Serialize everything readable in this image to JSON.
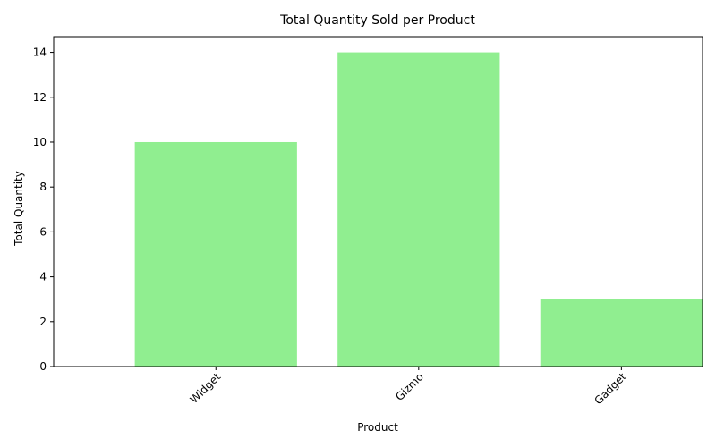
{
  "chart_data": {
    "type": "bar",
    "title": "Total Quantity Sold per Product",
    "xlabel": "Product",
    "ylabel": "Total Quantity",
    "categories": [
      "Widget",
      "Gizmo",
      "Gadget"
    ],
    "values": [
      10,
      14,
      3
    ],
    "ylim": [
      0,
      14.7
    ],
    "yticks": [
      "0",
      "2",
      "4",
      "6",
      "8",
      "10",
      "12",
      "14"
    ],
    "grid": false,
    "legend": "none",
    "bar_color": "#90EE90",
    "xtick_rotation": 45
  }
}
